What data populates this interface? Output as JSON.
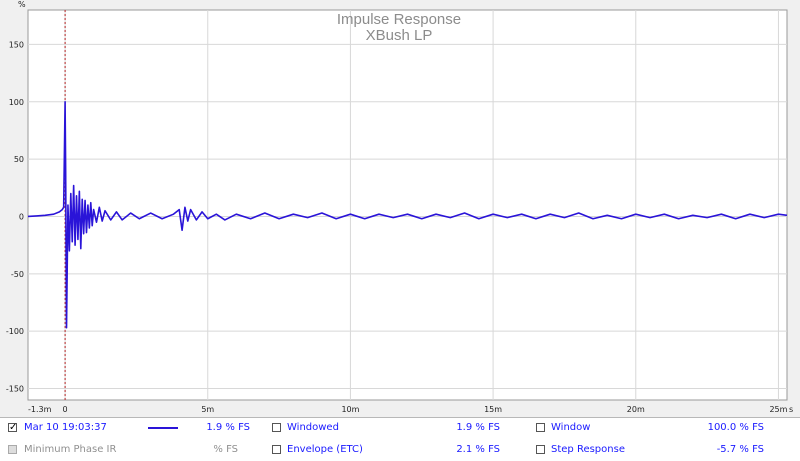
{
  "chart_data": {
    "type": "line",
    "title": "Impulse Response",
    "subtitle": "XBush LP",
    "ylabel": "%",
    "xunit": "s",
    "ylim": [
      -160,
      180
    ],
    "xlim": [
      -1.3,
      25.3
    ],
    "y_ticks": [
      150,
      100,
      50,
      0,
      -50,
      -100,
      -150
    ],
    "y_tick_labels": [
      "150",
      "100",
      "50",
      "0",
      "-50",
      "-100",
      "-150"
    ],
    "x_ticks": [
      -1.3,
      0,
      5,
      10,
      15,
      20,
      25
    ],
    "x_tick_labels": [
      "-1.3m",
      "0",
      "5m",
      "10m",
      "15m",
      "20m",
      "25m"
    ],
    "x_unit_note": "ms",
    "marker_x": 0,
    "grid": true,
    "series": [
      {
        "name": "Mar 10 19:03:37",
        "color": "#2a14d8",
        "x": [
          -1.3,
          -1.0,
          -0.7,
          -0.4,
          -0.2,
          -0.1,
          -0.05,
          0,
          0.02,
          0.05,
          0.1,
          0.15,
          0.2,
          0.25,
          0.3,
          0.35,
          0.4,
          0.45,
          0.5,
          0.55,
          0.6,
          0.65,
          0.7,
          0.75,
          0.8,
          0.85,
          0.9,
          0.95,
          1.0,
          1.1,
          1.2,
          1.3,
          1.4,
          1.6,
          1.8,
          2.0,
          2.3,
          2.6,
          3.0,
          3.4,
          3.8,
          4.0,
          4.1,
          4.2,
          4.3,
          4.4,
          4.6,
          4.8,
          5.0,
          5.3,
          5.6,
          6.0,
          6.5,
          7.0,
          7.5,
          8.0,
          8.5,
          9.0,
          9.5,
          10.0,
          10.5,
          11.0,
          11.5,
          12.0,
          12.5,
          13.0,
          13.5,
          14.0,
          14.5,
          15.0,
          15.5,
          16.0,
          16.5,
          17.0,
          17.5,
          18.0,
          18.5,
          19.0,
          19.5,
          20.0,
          20.5,
          21.0,
          21.5,
          22.0,
          22.5,
          23.0,
          23.5,
          24.0,
          24.5,
          25.0,
          25.3
        ],
        "y": [
          0,
          0.5,
          1,
          2,
          4,
          6,
          8,
          100,
          40,
          -97,
          10,
          -30,
          20,
          -22,
          27,
          -25,
          18,
          -20,
          22,
          -28,
          15,
          -15,
          14,
          -14,
          10,
          -10,
          12,
          -8,
          6,
          -5,
          8,
          -4,
          5,
          -3,
          4,
          -3,
          3,
          -2,
          3,
          -2,
          2,
          6,
          -12,
          8,
          -4,
          6,
          -3,
          4,
          -2,
          2,
          -3,
          2,
          -2,
          3,
          -2,
          2,
          -1,
          3,
          -2,
          2,
          -2,
          2,
          -1,
          2,
          -2,
          2,
          -1,
          3,
          -2,
          2,
          -1,
          2,
          -2,
          2,
          -1,
          3,
          -2,
          1,
          -2,
          2,
          -1,
          2,
          -2,
          1,
          -1,
          2,
          -2,
          2,
          -1,
          2,
          1
        ]
      }
    ]
  },
  "legend": {
    "row1": {
      "series_label": "Mar 10 19:03:37",
      "series_value": "1.9 % FS",
      "windowed_label": "Windowed",
      "windowed_value": "1.9 % FS",
      "window_label": "Window",
      "window_value": "100.0 % FS"
    },
    "row2": {
      "minphase_label": "Minimum Phase IR",
      "minphase_value": "% FS",
      "envelope_label": "Envelope (ETC)",
      "envelope_value": "2.1 % FS",
      "step_label": "Step Response",
      "step_value": "-5.7 % FS"
    }
  }
}
